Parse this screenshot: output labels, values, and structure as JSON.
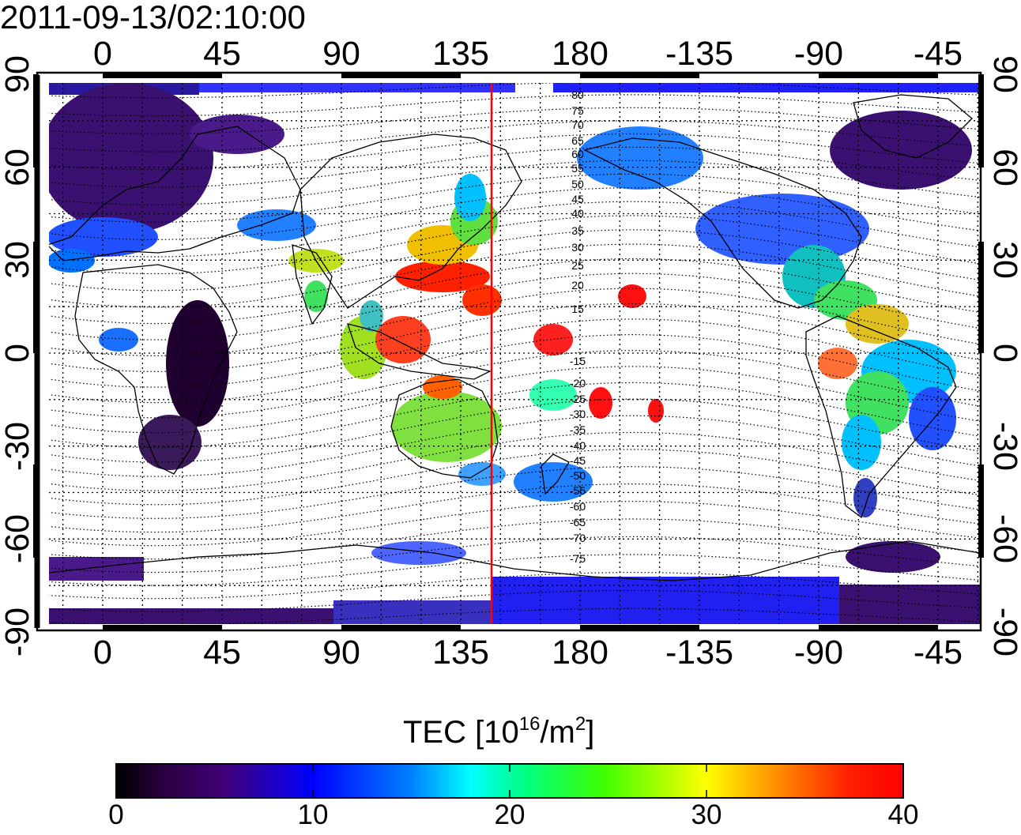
{
  "title": "2011-09-13/02:10:00",
  "axes": {
    "top_ticks": [
      "0",
      "45",
      "90",
      "135",
      "180",
      "-135",
      "-90",
      "-45"
    ],
    "bottom_ticks": [
      "0",
      "45",
      "90",
      "135",
      "180",
      "-135",
      "-90",
      "-45"
    ],
    "left_ticks": [
      "90",
      "60",
      "30",
      "0",
      "-30",
      "-60",
      "-90"
    ],
    "right_ticks": [
      "90",
      "60",
      "30",
      "0",
      "-30",
      "-60",
      "-90"
    ]
  },
  "contour_labels_north": [
    "80",
    "75",
    "70",
    "65",
    "60",
    "55",
    "50",
    "45",
    "40",
    "35",
    "30",
    "25",
    "20",
    "15"
  ],
  "contour_labels_south": [
    "-15",
    "-20",
    "-25",
    "-30",
    "-35",
    "-40",
    "-45",
    "-50",
    "-55",
    "-60",
    "-65",
    "-70",
    "-75"
  ],
  "colorbar": {
    "title_main": "TEC  [10",
    "title_sup1": "16",
    "title_mid": "/m",
    "title_sup2": "2",
    "title_end": "]",
    "ticks": [
      "0",
      "10",
      "20",
      "30",
      "40"
    ],
    "range": [
      0,
      40
    ]
  },
  "meridian_marker": {
    "longitude": 148,
    "color": "#ff0000"
  },
  "colors": {
    "low": "#000000",
    "mid_low": "#0000ff",
    "mid": "#00ffff",
    "mid_high": "#ffff00",
    "high": "#ff0000"
  }
}
